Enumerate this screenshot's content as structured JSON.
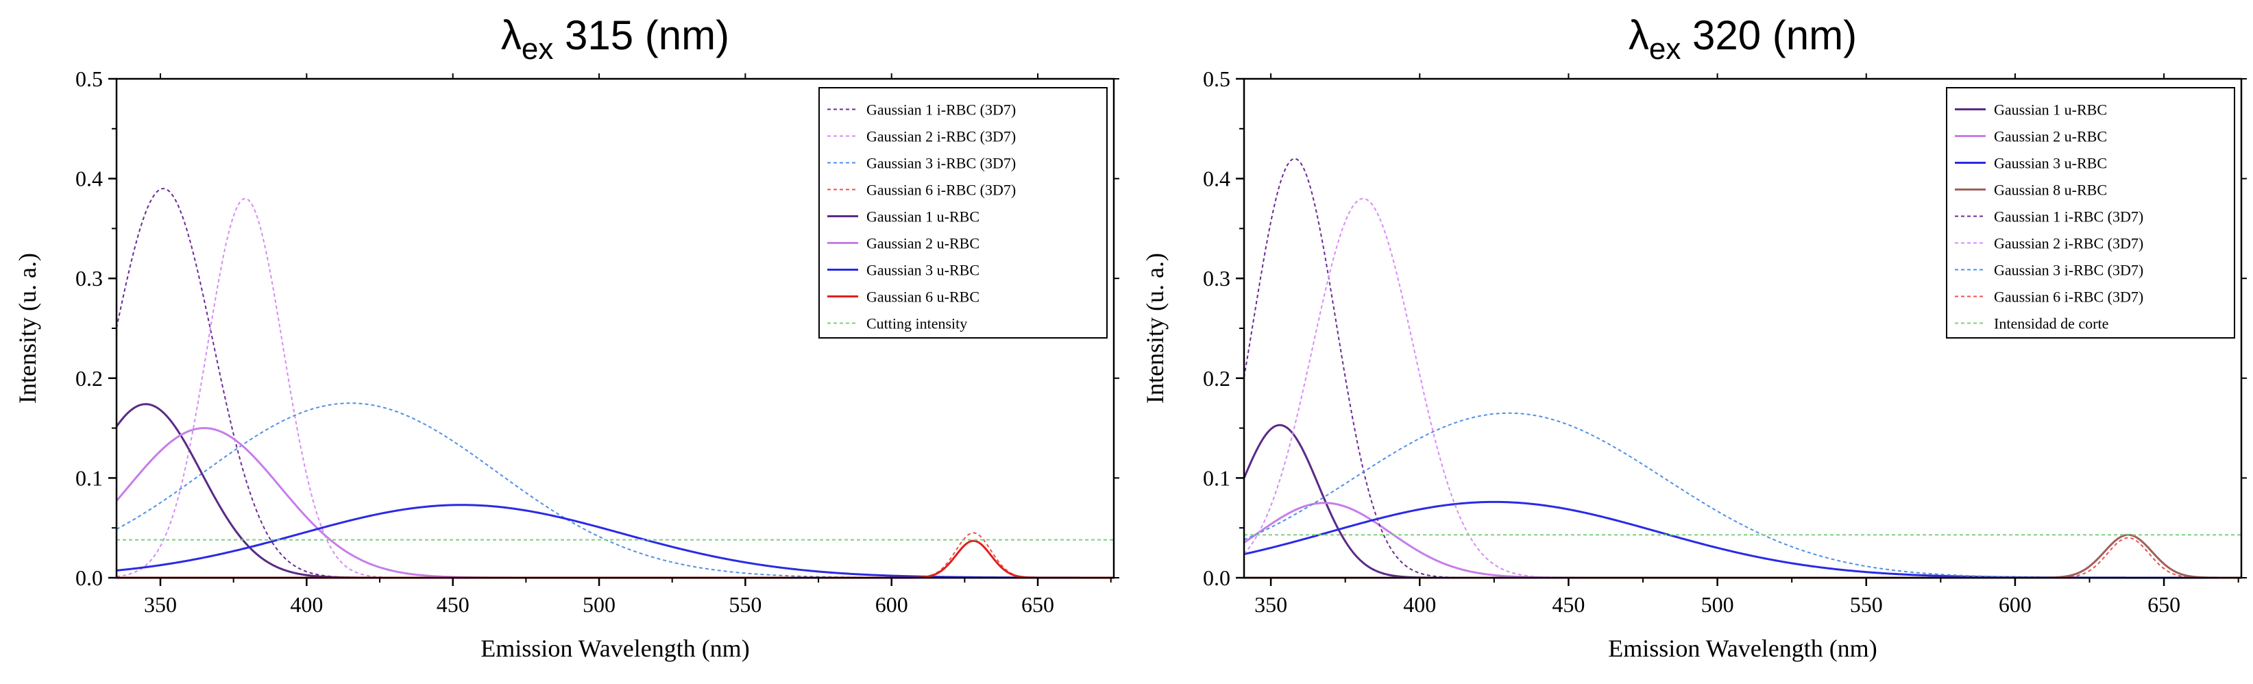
{
  "chart_data": [
    {
      "type": "line",
      "title": {
        "symbol": "λ",
        "sub": "ex",
        "rest": " 315 (nm)"
      },
      "xlabel": "Emission Wavelength (nm)",
      "ylabel": "Intensity (u. a.)",
      "xlim": [
        335,
        676
      ],
      "ylim": [
        0,
        0.5
      ],
      "xticks": [
        350,
        400,
        450,
        500,
        550,
        600,
        650
      ],
      "yticks": [
        0.0,
        0.1,
        0.2,
        0.3,
        0.4,
        0.5
      ],
      "grid": false,
      "legend_position": "top-right",
      "series": [
        {
          "name": "Gaussian 1 i-RBC (3D7)",
          "color": "#6a2c91",
          "dashed": true,
          "center": 351,
          "amplitude": 0.39,
          "sigma": 17
        },
        {
          "name": "Gaussian 2 i-RBC (3D7)",
          "color": "#d58cf5",
          "dashed": true,
          "center": 379,
          "amplitude": 0.38,
          "sigma": 13
        },
        {
          "name": "Gaussian 3 i-RBC (3D7)",
          "color": "#4f8fe8",
          "dashed": true,
          "center": 415,
          "amplitude": 0.175,
          "sigma": 50
        },
        {
          "name": "Gaussian 6 i-RBC (3D7)",
          "color": "#f05050",
          "dashed": true,
          "center": 628,
          "amplitude": 0.045,
          "sigma": 6
        },
        {
          "name": "Gaussian 1 u-RBC",
          "color": "#5b2a86",
          "dashed": false,
          "center": 345,
          "amplitude": 0.174,
          "sigma": 19
        },
        {
          "name": "Gaussian 2 u-RBC",
          "color": "#c77dea",
          "dashed": false,
          "center": 365,
          "amplitude": 0.15,
          "sigma": 26
        },
        {
          "name": "Gaussian 3 u-RBC",
          "color": "#2a2ae6",
          "dashed": false,
          "center": 453,
          "amplitude": 0.073,
          "sigma": 55
        },
        {
          "name": "Gaussian 6 u-RBC",
          "color": "#e0201c",
          "dashed": false,
          "center": 628,
          "amplitude": 0.037,
          "sigma": 6
        },
        {
          "name": "Cutting intensity",
          "color": "#7ccf7c",
          "dashed": true,
          "constant": 0.038
        }
      ]
    },
    {
      "type": "line",
      "title": {
        "symbol": "λ",
        "sub": "ex",
        "rest": " 320 (nm)"
      },
      "xlabel": "Emission Wavelength (nm)",
      "ylabel": "Intensity (u. a.)",
      "xlim": [
        341,
        676
      ],
      "ylim": [
        0,
        0.5
      ],
      "xticks": [
        350,
        400,
        450,
        500,
        550,
        600,
        650
      ],
      "yticks": [
        0.0,
        0.1,
        0.2,
        0.3,
        0.4,
        0.5
      ],
      "grid": false,
      "legend_position": "top-right",
      "series": [
        {
          "name": "Gaussian 1 u-RBC",
          "color": "#5b2a86",
          "dashed": false,
          "center": 353,
          "amplitude": 0.153,
          "sigma": 13
        },
        {
          "name": "Gaussian 2 u-RBC",
          "color": "#c77dea",
          "dashed": false,
          "center": 368,
          "amplitude": 0.075,
          "sigma": 22
        },
        {
          "name": "Gaussian 3 u-RBC",
          "color": "#2a2ae6",
          "dashed": false,
          "center": 425,
          "amplitude": 0.076,
          "sigma": 55
        },
        {
          "name": "Gaussian 8 u-RBC",
          "color": "#a0605a",
          "dashed": false,
          "center": 638,
          "amplitude": 0.043,
          "sigma": 8
        },
        {
          "name": "Gaussian 1 i-RBC (3D7)",
          "color": "#6a2c91",
          "dashed": true,
          "center": 358,
          "amplitude": 0.42,
          "sigma": 14
        },
        {
          "name": "Gaussian 2 i-RBC (3D7)",
          "color": "#d58cf5",
          "dashed": true,
          "center": 381,
          "amplitude": 0.38,
          "sigma": 17
        },
        {
          "name": "Gaussian 3 i-RBC (3D7)",
          "color": "#4f8fe8",
          "dashed": true,
          "center": 430,
          "amplitude": 0.165,
          "sigma": 52
        },
        {
          "name": "Gaussian 6 i-RBC (3D7)",
          "color": "#f05050",
          "dashed": true,
          "center": 638,
          "amplitude": 0.04,
          "sigma": 7
        },
        {
          "name": "Intensidad de corte",
          "color": "#7ccf7c",
          "dashed": true,
          "constant": 0.043
        }
      ]
    }
  ]
}
